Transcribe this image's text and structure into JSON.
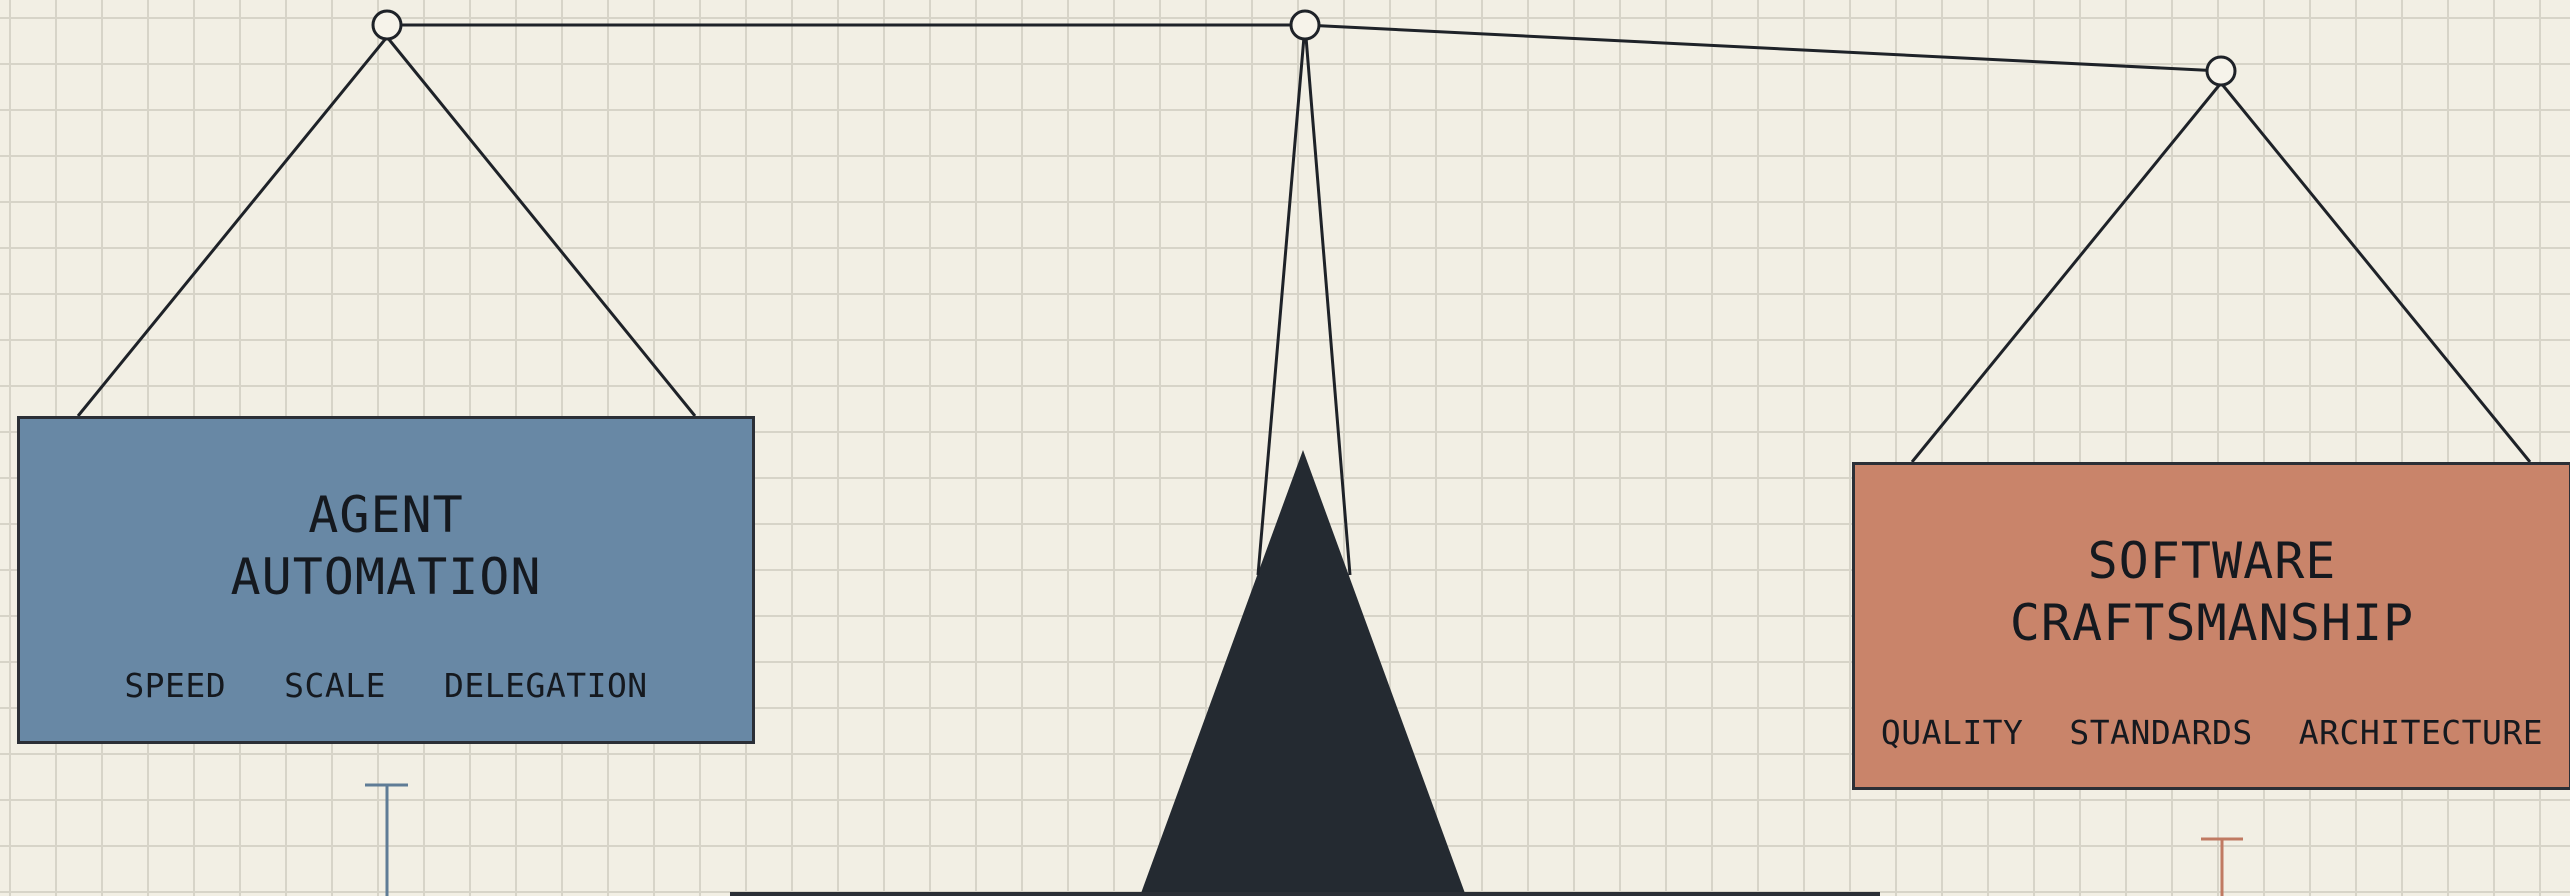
{
  "colors": {
    "background": "#f2efe4",
    "grid": "#d7d4c8",
    "line": "#1e2228",
    "fulcrum": "#242a31",
    "agent_box": "#6888a5",
    "craft_box": "#c9846a"
  },
  "left_pan": {
    "title_lines": [
      "AGENT",
      "AUTOMATION"
    ],
    "tags": [
      "SPEED",
      "SCALE",
      "DELEGATION"
    ]
  },
  "right_pan": {
    "title_lines": [
      "SOFTWARE",
      "CRAFTSMANSHIP"
    ],
    "tags": [
      "QUALITY",
      "STANDARDS",
      "ARCHITECTURE"
    ]
  }
}
